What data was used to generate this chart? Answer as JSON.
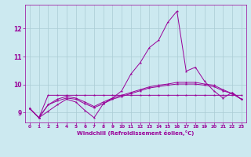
{
  "background_color": "#cce9f0",
  "grid_color": "#aaccd4",
  "line_color": "#990099",
  "xlabel": "Windchill (Refroidissement éolien,°C)",
  "xlim": [
    -0.5,
    23.5
  ],
  "ylim": [
    8.65,
    12.85
  ],
  "yticks": [
    9,
    10,
    11,
    12
  ],
  "xticks": [
    0,
    1,
    2,
    3,
    4,
    5,
    6,
    7,
    8,
    9,
    10,
    11,
    12,
    13,
    14,
    15,
    16,
    17,
    18,
    19,
    20,
    21,
    22,
    23
  ],
  "series1": [
    9.15,
    8.82,
    9.05,
    9.28,
    9.48,
    9.38,
    9.08,
    8.82,
    9.32,
    9.52,
    9.78,
    10.38,
    10.78,
    11.32,
    11.58,
    12.22,
    12.62,
    10.48,
    10.62,
    10.12,
    9.78,
    9.52,
    9.72,
    9.48
  ],
  "series2": [
    9.15,
    8.82,
    9.62,
    9.62,
    9.62,
    9.62,
    9.62,
    9.62,
    9.62,
    9.62,
    9.62,
    9.62,
    9.62,
    9.62,
    9.62,
    9.62,
    9.62,
    9.62,
    9.62,
    9.62,
    9.62,
    9.62,
    9.62,
    9.62
  ],
  "series3": [
    9.15,
    8.82,
    9.28,
    9.48,
    9.58,
    9.52,
    9.38,
    9.22,
    9.38,
    9.52,
    9.62,
    9.72,
    9.82,
    9.92,
    9.98,
    10.02,
    10.08,
    10.08,
    10.08,
    10.02,
    9.98,
    9.82,
    9.68,
    9.48
  ],
  "series4": [
    9.15,
    8.82,
    9.28,
    9.42,
    9.52,
    9.48,
    9.32,
    9.18,
    9.32,
    9.48,
    9.58,
    9.68,
    9.78,
    9.88,
    9.93,
    9.98,
    10.02,
    10.02,
    10.02,
    9.98,
    9.93,
    9.78,
    9.68,
    9.48
  ]
}
